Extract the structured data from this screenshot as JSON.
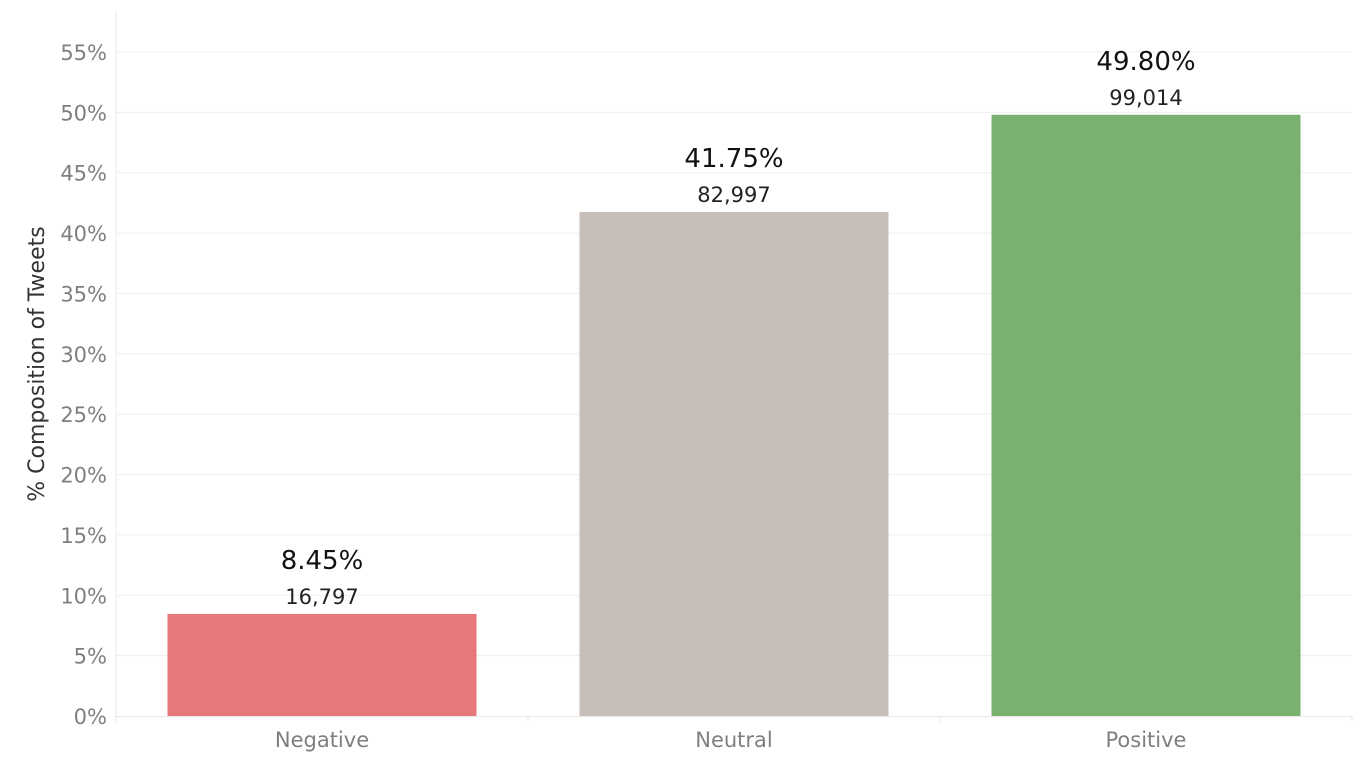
{
  "chart_data": {
    "type": "bar",
    "ylabel": "% Composition of Tweets",
    "xlabel": "",
    "ylim": [
      0,
      55
    ],
    "y_ticks": [
      0,
      5,
      10,
      15,
      20,
      25,
      30,
      35,
      40,
      45,
      50,
      55
    ],
    "y_tick_labels": [
      "0%",
      "5%",
      "10%",
      "15%",
      "20%",
      "25%",
      "30%",
      "35%",
      "40%",
      "45%",
      "50%",
      "55%"
    ],
    "grid": true,
    "legend": "none",
    "categories": [
      "Negative",
      "Neutral",
      "Positive"
    ],
    "values": [
      8.45,
      41.75,
      49.8
    ],
    "pct_labels": [
      "8.45%",
      "41.75%",
      "49.80%"
    ],
    "count_labels": [
      "16,797",
      "82,997",
      "99,014"
    ],
    "colors": [
      "#e77779",
      "#c7beba",
      "#79b26f"
    ]
  }
}
